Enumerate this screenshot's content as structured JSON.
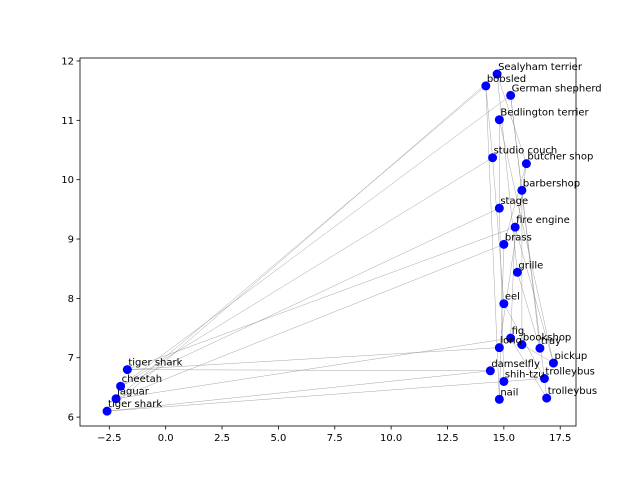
{
  "chart_data": {
    "type": "scatter",
    "title": "",
    "xlabel": "",
    "ylabel": "",
    "xlim": [
      -3.8,
      18.2
    ],
    "ylim": [
      5.85,
      12.05
    ],
    "xticks": [
      -2.5,
      0.0,
      2.5,
      5.0,
      7.5,
      10.0,
      12.5,
      15.0,
      17.5
    ],
    "xtick_labels": [
      "−2.5",
      "0.0",
      "2.5",
      "5.0",
      "7.5",
      "10.0",
      "12.5",
      "15.0",
      "17.5"
    ],
    "yticks": [
      6,
      7,
      8,
      9,
      10,
      11,
      12
    ],
    "ytick_labels": [
      "6",
      "7",
      "8",
      "9",
      "10",
      "11",
      "12"
    ],
    "grid": false,
    "marker_color": "#0000ff",
    "line_color": "#808080",
    "points": [
      {
        "label": "tiger shark",
        "x": -2.6,
        "y": 6.1
      },
      {
        "label": "jaguar",
        "x": -2.2,
        "y": 6.31
      },
      {
        "label": "cheetah",
        "x": -2.0,
        "y": 6.52
      },
      {
        "label": "tiger shark",
        "x": -1.7,
        "y": 6.8
      },
      {
        "label": "Sealyham terrier",
        "x": 14.7,
        "y": 11.78
      },
      {
        "label": "bobsled",
        "x": 14.2,
        "y": 11.58
      },
      {
        "label": "German shepherd",
        "x": 15.3,
        "y": 11.42
      },
      {
        "label": "Bedlington terrier",
        "x": 14.8,
        "y": 11.01
      },
      {
        "label": "studio couch",
        "x": 14.5,
        "y": 10.37
      },
      {
        "label": "butcher shop",
        "x": 16.0,
        "y": 10.27
      },
      {
        "label": "barbershop",
        "x": 15.8,
        "y": 9.82
      },
      {
        "label": "stage",
        "x": 14.8,
        "y": 9.52
      },
      {
        "label": "fire engine",
        "x": 15.5,
        "y": 9.2
      },
      {
        "label": "brass",
        "x": 15.0,
        "y": 8.91
      },
      {
        "label": "grille",
        "x": 15.6,
        "y": 8.44
      },
      {
        "label": "eel",
        "x": 15.0,
        "y": 7.91
      },
      {
        "label": "fig",
        "x": 15.3,
        "y": 7.33
      },
      {
        "label": "bookshop",
        "x": 15.8,
        "y": 7.22
      },
      {
        "label": "tray",
        "x": 16.6,
        "y": 7.16
      },
      {
        "label": "long",
        "x": 14.8,
        "y": 7.17
      },
      {
        "label": "pickup",
        "x": 17.2,
        "y": 6.91
      },
      {
        "label": "damselfly",
        "x": 14.4,
        "y": 6.78
      },
      {
        "label": "trolleybus",
        "x": 16.8,
        "y": 6.65
      },
      {
        "label": "shih-tzu",
        "x": 15.0,
        "y": 6.6
      },
      {
        "label": "trolleybus",
        "x": 16.9,
        "y": 6.32
      },
      {
        "label": "nail",
        "x": 14.8,
        "y": 6.3
      }
    ],
    "edges": [
      [
        0,
        4
      ],
      [
        0,
        21
      ],
      [
        0,
        22
      ],
      [
        1,
        5
      ],
      [
        1,
        13
      ],
      [
        1,
        16
      ],
      [
        2,
        6
      ],
      [
        2,
        11
      ],
      [
        2,
        8
      ],
      [
        3,
        21
      ],
      [
        3,
        19
      ],
      [
        3,
        12
      ],
      [
        4,
        9
      ],
      [
        5,
        8
      ],
      [
        6,
        10
      ],
      [
        7,
        11
      ],
      [
        8,
        15
      ],
      [
        9,
        13
      ],
      [
        10,
        17
      ],
      [
        11,
        23
      ],
      [
        12,
        20
      ],
      [
        13,
        25
      ],
      [
        14,
        18
      ],
      [
        15,
        22
      ],
      [
        16,
        24
      ],
      [
        7,
        20
      ],
      [
        4,
        14
      ],
      [
        6,
        18
      ],
      [
        10,
        24
      ],
      [
        12,
        16
      ],
      [
        9,
        19
      ],
      [
        17,
        20
      ],
      [
        5,
        25
      ]
    ]
  }
}
